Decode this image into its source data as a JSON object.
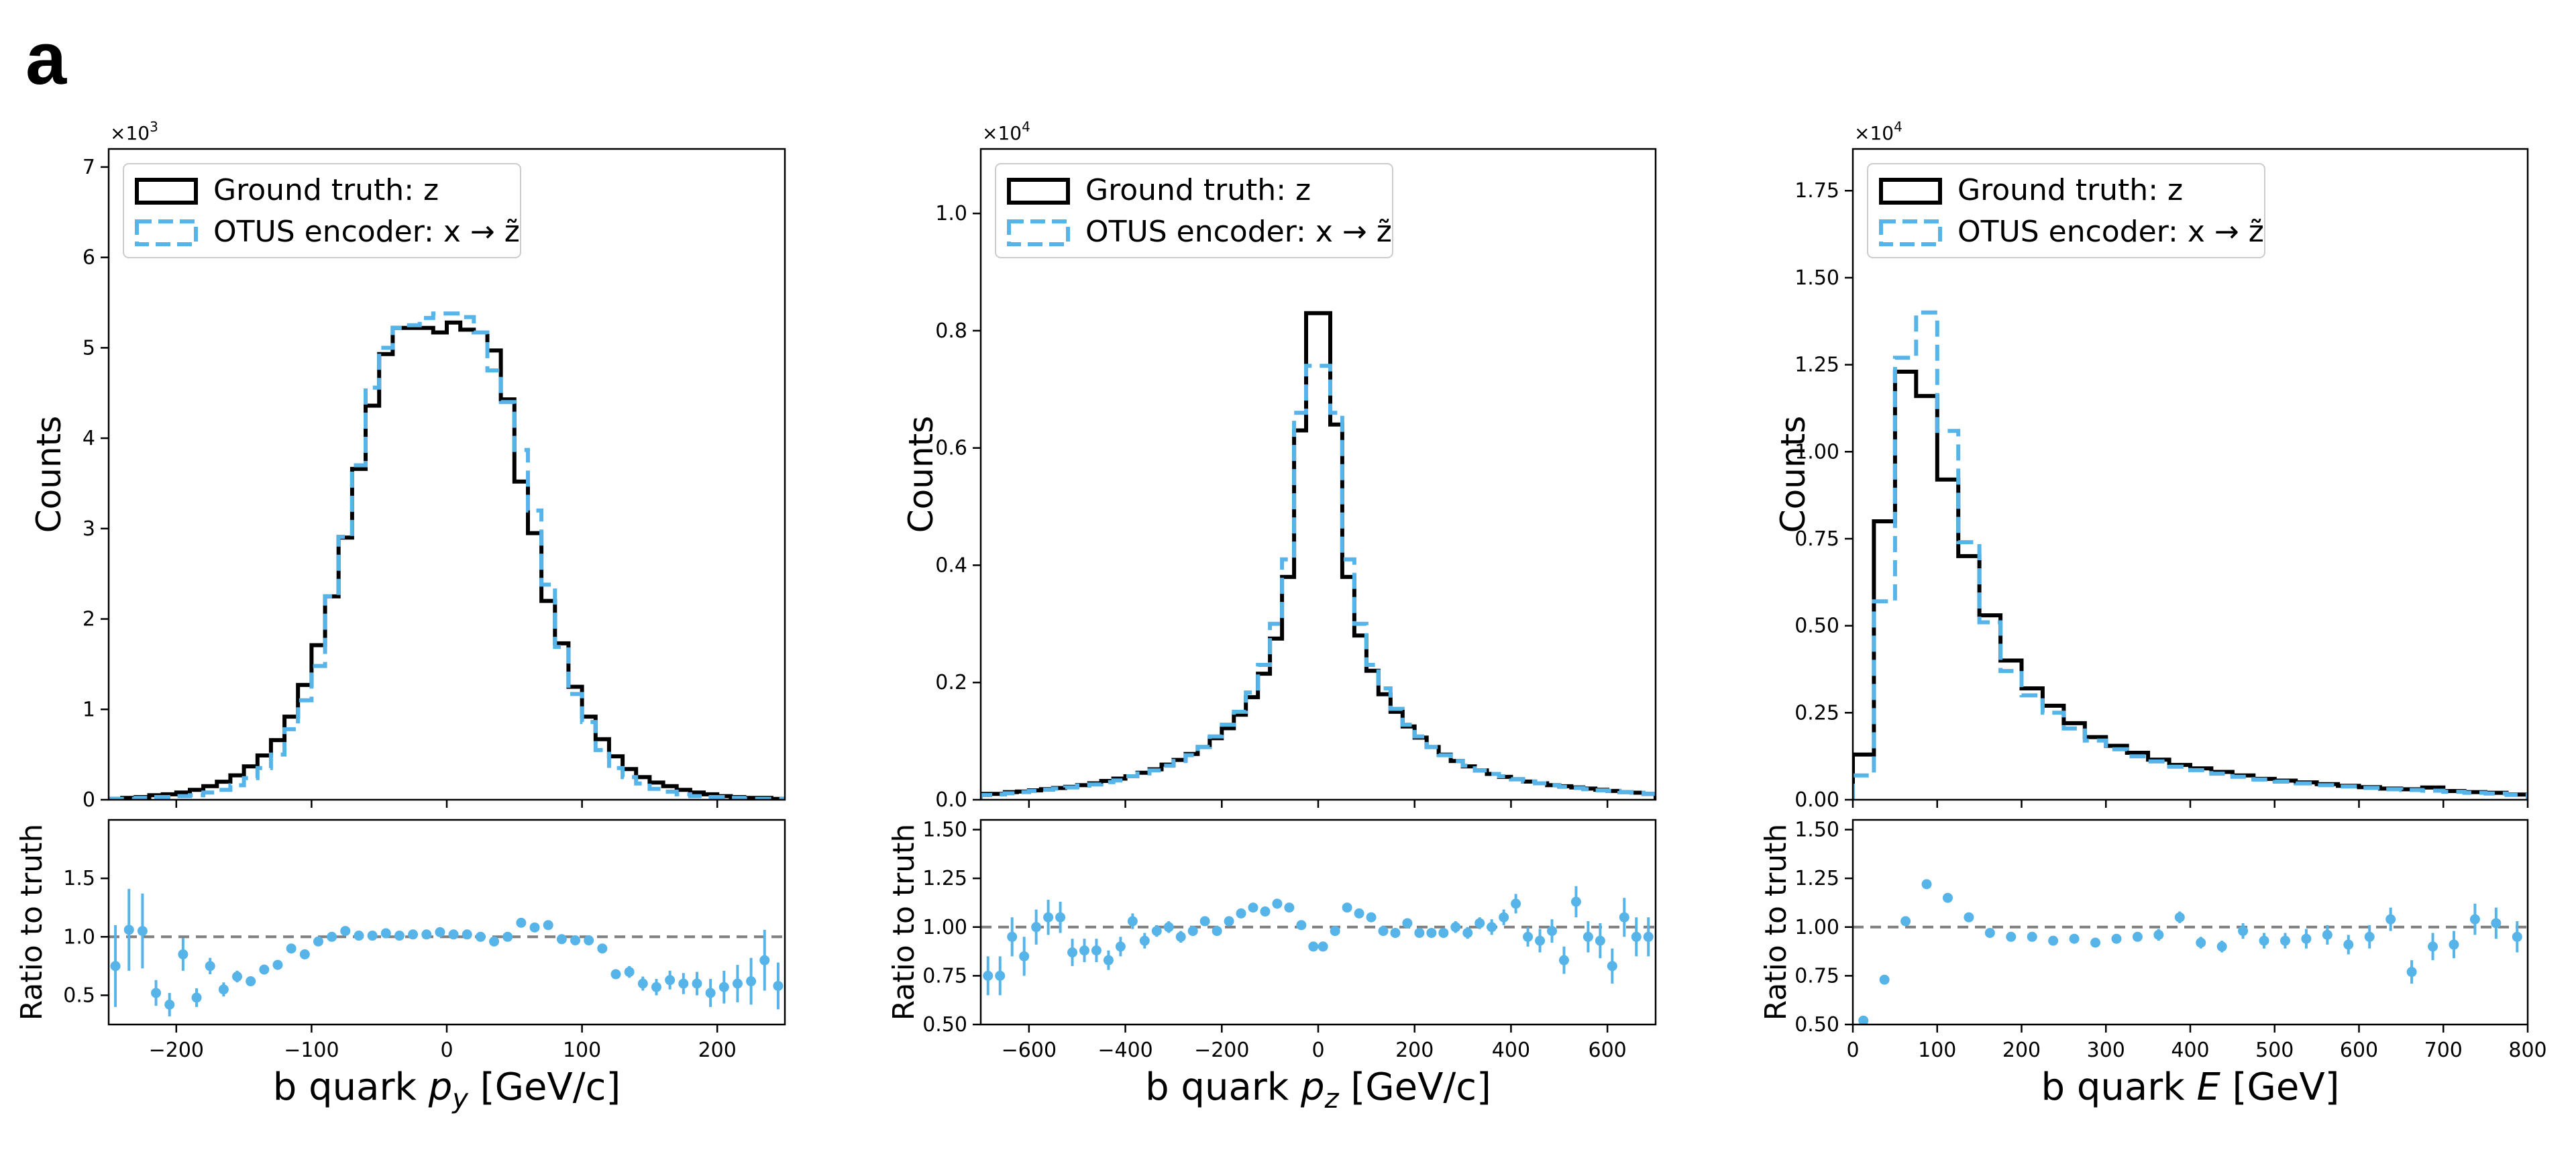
{
  "panel_label": "a",
  "colors": {
    "truth": "#000000",
    "model": "#56b4e9",
    "reference": "#7f7f7f",
    "axes": "#000000"
  },
  "legend": {
    "truth_label": "Ground truth: z",
    "model_label": "OTUS encoder: x → z̃"
  },
  "chart_data": [
    {
      "type": "histogram",
      "title": "",
      "xlabel": "b quark p_y [GeV/c]",
      "xlabel_plain": "b quark",
      "xlabel_var": "p",
      "xlabel_sub": "y",
      "xlabel_unit": "[GeV/c]",
      "ylabel": "Counts",
      "ylabel_ratio": "Ratio to truth",
      "offset_label": "×10³",
      "offset_mant": "×10",
      "offset_exp": "3",
      "legend_position": "top-left",
      "xlim": [
        -250,
        250
      ],
      "ylim": [
        0,
        7.2
      ],
      "yticks": [
        0,
        1,
        2,
        3,
        4,
        5,
        6,
        7
      ],
      "yticklabels": [
        "0",
        "1",
        "2",
        "3",
        "4",
        "5",
        "6",
        "7"
      ],
      "xticks": [
        -200,
        -100,
        0,
        100,
        200
      ],
      "xticklabels": [
        "−200",
        "−100",
        "0",
        "100",
        "200"
      ],
      "ratio_ylim": [
        0.25,
        2.0
      ],
      "ratio_yticks": [
        0.5,
        1.0,
        1.5
      ],
      "ratio_yticklabels": [
        "0.5",
        "1.0",
        "1.5"
      ],
      "bin_edges": [
        -250,
        -240,
        -230,
        -220,
        -210,
        -200,
        -190,
        -180,
        -170,
        -160,
        -150,
        -140,
        -130,
        -120,
        -110,
        -100,
        -90,
        -80,
        -70,
        -60,
        -50,
        -40,
        -30,
        -20,
        -10,
        0,
        10,
        20,
        30,
        40,
        50,
        60,
        70,
        80,
        90,
        100,
        110,
        120,
        130,
        140,
        150,
        160,
        170,
        180,
        190,
        200,
        210,
        220,
        230,
        240,
        250
      ],
      "series": [
        {
          "name": "Ground truth: z",
          "values": [
            0.01,
            0.02,
            0.03,
            0.05,
            0.06,
            0.08,
            0.11,
            0.15,
            0.2,
            0.27,
            0.37,
            0.49,
            0.66,
            0.92,
            1.27,
            1.71,
            2.25,
            2.9,
            3.66,
            4.36,
            4.93,
            5.22,
            5.22,
            5.22,
            5.17,
            5.28,
            5.2,
            5.17,
            4.97,
            4.43,
            3.52,
            2.95,
            2.2,
            1.73,
            1.25,
            0.92,
            0.67,
            0.48,
            0.34,
            0.25,
            0.19,
            0.15,
            0.11,
            0.08,
            0.06,
            0.04,
            0.03,
            0.02,
            0.02,
            0.01
          ]
        },
        {
          "name": "OTUS encoder: x → z̃",
          "values": [
            0.01,
            0.01,
            0.02,
            0.03,
            0.03,
            0.04,
            0.05,
            0.08,
            0.11,
            0.16,
            0.24,
            0.35,
            0.5,
            0.78,
            1.1,
            1.48,
            2.25,
            2.91,
            3.7,
            4.56,
            5.0,
            5.22,
            5.25,
            5.33,
            5.38,
            5.38,
            5.34,
            5.17,
            4.75,
            4.4,
            3.87,
            3.2,
            2.38,
            1.69,
            1.17,
            0.86,
            0.55,
            0.35,
            0.25,
            0.18,
            0.12,
            0.09,
            0.06,
            0.04,
            0.03,
            0.03,
            0.02,
            0.01,
            0.01,
            0.01
          ]
        }
      ],
      "ratio": {
        "x": [
          -245,
          -235,
          -225,
          -215,
          -205,
          -195,
          -185,
          -175,
          -165,
          -155,
          -145,
          -135,
          -125,
          -115,
          -105,
          -95,
          -85,
          -75,
          -65,
          -55,
          -45,
          -35,
          -25,
          -15,
          -5,
          5,
          15,
          25,
          35,
          45,
          55,
          65,
          75,
          85,
          95,
          105,
          115,
          125,
          135,
          145,
          155,
          165,
          175,
          185,
          195,
          205,
          215,
          225,
          235,
          245
        ],
        "values": [
          0.75,
          1.06,
          1.05,
          0.52,
          0.42,
          0.85,
          0.48,
          0.75,
          0.55,
          0.66,
          0.62,
          0.72,
          0.76,
          0.9,
          0.85,
          0.96,
          1.0,
          1.05,
          1.01,
          1.01,
          1.03,
          1.01,
          1.02,
          1.02,
          1.04,
          1.02,
          1.02,
          1.0,
          0.96,
          1.0,
          1.12,
          1.08,
          1.1,
          0.98,
          0.97,
          0.97,
          0.9,
          0.68,
          0.7,
          0.6,
          0.57,
          0.63,
          0.6,
          0.6,
          0.52,
          0.57,
          0.6,
          0.62,
          0.8,
          0.58
        ],
        "errors": [
          0.35,
          0.35,
          0.32,
          0.11,
          0.1,
          0.14,
          0.08,
          0.07,
          0.06,
          0.05,
          0.04,
          0.03,
          0.03,
          0.02,
          0.02,
          0.02,
          0.02,
          0.02,
          0.02,
          0.01,
          0.01,
          0.01,
          0.01,
          0.01,
          0.01,
          0.01,
          0.01,
          0.01,
          0.01,
          0.01,
          0.02,
          0.02,
          0.02,
          0.02,
          0.02,
          0.03,
          0.03,
          0.04,
          0.05,
          0.06,
          0.07,
          0.08,
          0.09,
          0.1,
          0.12,
          0.14,
          0.16,
          0.2,
          0.26,
          0.2
        ]
      }
    },
    {
      "type": "histogram",
      "title": "",
      "xlabel": "b quark p_z [GeV/c]",
      "xlabel_plain": "b quark",
      "xlabel_var": "p",
      "xlabel_sub": "z",
      "xlabel_unit": "[GeV/c]",
      "ylabel": "Counts",
      "ylabel_ratio": "Ratio to truth",
      "offset_label": "×10⁴",
      "offset_mant": "×10",
      "offset_exp": "4",
      "legend_position": "top-left",
      "xlim": [
        -700,
        700
      ],
      "ylim": [
        0,
        1.11
      ],
      "yticks": [
        0,
        0.2,
        0.4,
        0.6,
        0.8,
        1.0
      ],
      "yticklabels": [
        "0.0",
        "0.2",
        "0.4",
        "0.6",
        "0.8",
        "1.0"
      ],
      "xticks": [
        -600,
        -400,
        -200,
        0,
        200,
        400,
        600
      ],
      "xticklabels": [
        "−600",
        "−400",
        "−200",
        "0",
        "200",
        "400",
        "600"
      ],
      "ratio_ylim": [
        0.5,
        1.55
      ],
      "ratio_yticks": [
        0.5,
        0.75,
        1.0,
        1.25,
        1.5
      ],
      "ratio_yticklabels": [
        "0.50",
        "0.75",
        "1.00",
        "1.25",
        "1.50"
      ],
      "bin_edges": [
        -700,
        -675,
        -650,
        -625,
        -600,
        -575,
        -550,
        -525,
        -500,
        -475,
        -450,
        -425,
        -400,
        -375,
        -350,
        -325,
        -300,
        -275,
        -250,
        -225,
        -200,
        -175,
        -150,
        -125,
        -100,
        -75,
        -50,
        -25,
        0,
        25,
        50,
        75,
        100,
        125,
        150,
        175,
        200,
        225,
        250,
        275,
        300,
        325,
        350,
        375,
        400,
        425,
        450,
        475,
        500,
        525,
        550,
        575,
        600,
        625,
        650,
        675,
        700
      ],
      "series": [
        {
          "name": "Ground truth: z",
          "values": [
            0.01,
            0.01,
            0.013,
            0.014,
            0.016,
            0.018,
            0.02,
            0.022,
            0.025,
            0.028,
            0.032,
            0.036,
            0.04,
            0.046,
            0.052,
            0.06,
            0.068,
            0.078,
            0.09,
            0.105,
            0.122,
            0.145,
            0.175,
            0.215,
            0.275,
            0.38,
            0.63,
            0.83,
            0.83,
            0.64,
            0.38,
            0.28,
            0.22,
            0.18,
            0.15,
            0.125,
            0.106,
            0.09,
            0.077,
            0.066,
            0.057,
            0.05,
            0.044,
            0.039,
            0.035,
            0.031,
            0.028,
            0.025,
            0.023,
            0.021,
            0.019,
            0.017,
            0.015,
            0.013,
            0.012,
            0.01
          ]
        },
        {
          "name": "OTUS encoder: x → z̃",
          "values": [
            0.008,
            0.009,
            0.011,
            0.013,
            0.015,
            0.017,
            0.019,
            0.021,
            0.024,
            0.026,
            0.03,
            0.033,
            0.04,
            0.045,
            0.05,
            0.058,
            0.066,
            0.076,
            0.09,
            0.108,
            0.128,
            0.15,
            0.183,
            0.23,
            0.3,
            0.41,
            0.66,
            0.74,
            0.74,
            0.66,
            0.41,
            0.3,
            0.23,
            0.19,
            0.155,
            0.128,
            0.108,
            0.09,
            0.076,
            0.066,
            0.058,
            0.05,
            0.044,
            0.04,
            0.035,
            0.031,
            0.028,
            0.025,
            0.022,
            0.02,
            0.018,
            0.016,
            0.015,
            0.013,
            0.012,
            0.01
          ]
        }
      ],
      "ratio": {
        "x": [
          -685,
          -660,
          -635,
          -610,
          -585,
          -560,
          -535,
          -510,
          -485,
          -460,
          -435,
          -410,
          -385,
          -360,
          -335,
          -310,
          -285,
          -260,
          -235,
          -210,
          -185,
          -160,
          -135,
          -110,
          -85,
          -60,
          -35,
          -10,
          10,
          35,
          60,
          85,
          110,
          135,
          160,
          185,
          210,
          235,
          260,
          285,
          310,
          335,
          360,
          385,
          410,
          435,
          460,
          485,
          510,
          535,
          560,
          585,
          610,
          635,
          660,
          685
        ],
        "values": [
          0.75,
          0.75,
          0.95,
          0.85,
          1.0,
          1.05,
          1.05,
          0.87,
          0.88,
          0.88,
          0.83,
          0.9,
          1.03,
          0.93,
          0.98,
          1.0,
          0.95,
          0.98,
          1.03,
          0.98,
          1.03,
          1.07,
          1.1,
          1.08,
          1.12,
          1.1,
          1.01,
          0.9,
          0.9,
          0.98,
          1.1,
          1.07,
          1.05,
          0.98,
          0.97,
          1.02,
          0.97,
          0.97,
          0.97,
          1.0,
          0.97,
          1.02,
          1.0,
          1.05,
          1.12,
          0.95,
          0.93,
          0.98,
          0.83,
          1.13,
          0.95,
          0.93,
          0.8,
          1.05,
          0.95,
          0.95
        ],
        "errors": [
          0.1,
          0.1,
          0.1,
          0.1,
          0.09,
          0.09,
          0.08,
          0.07,
          0.06,
          0.06,
          0.05,
          0.05,
          0.04,
          0.04,
          0.03,
          0.03,
          0.03,
          0.02,
          0.02,
          0.02,
          0.02,
          0.01,
          0.01,
          0.01,
          0.01,
          0.01,
          0.01,
          0.01,
          0.01,
          0.01,
          0.01,
          0.01,
          0.01,
          0.01,
          0.01,
          0.02,
          0.02,
          0.02,
          0.02,
          0.03,
          0.03,
          0.03,
          0.04,
          0.04,
          0.05,
          0.05,
          0.06,
          0.06,
          0.07,
          0.08,
          0.08,
          0.09,
          0.09,
          0.1,
          0.1,
          0.1
        ]
      }
    },
    {
      "type": "histogram",
      "title": "",
      "xlabel": "b quark E [GeV]",
      "xlabel_plain": "b quark",
      "xlabel_var": "E",
      "xlabel_sub": "",
      "xlabel_unit": "[GeV]",
      "ylabel": "Counts",
      "ylabel_ratio": "Ratio to truth",
      "offset_label": "×10⁴",
      "offset_mant": "×10",
      "offset_exp": "4",
      "legend_position": "top-left",
      "xlim": [
        0,
        800
      ],
      "ylim": [
        0,
        1.87
      ],
      "yticks": [
        0,
        0.25,
        0.5,
        0.75,
        1.0,
        1.25,
        1.5,
        1.75
      ],
      "yticklabels": [
        "0.00",
        "0.25",
        "0.50",
        "0.75",
        "1.00",
        "1.25",
        "1.50",
        "1.75"
      ],
      "xticks": [
        0,
        100,
        200,
        300,
        400,
        500,
        600,
        700,
        800
      ],
      "xticklabels": [
        "0",
        "100",
        "200",
        "300",
        "400",
        "500",
        "600",
        "700",
        "800"
      ],
      "ratio_ylim": [
        0.5,
        1.55
      ],
      "ratio_yticks": [
        0.5,
        0.75,
        1.0,
        1.25,
        1.5
      ],
      "ratio_yticklabels": [
        "0.50",
        "0.75",
        "1.00",
        "1.25",
        "1.50"
      ],
      "bin_edges": [
        0,
        25,
        50,
        75,
        100,
        125,
        150,
        175,
        200,
        225,
        250,
        275,
        300,
        325,
        350,
        375,
        400,
        425,
        450,
        475,
        500,
        525,
        550,
        575,
        600,
        625,
        650,
        675,
        700,
        725,
        750,
        775,
        800
      ],
      "series": [
        {
          "name": "Ground truth: z",
          "values": [
            0.13,
            0.8,
            1.23,
            1.16,
            0.92,
            0.7,
            0.53,
            0.4,
            0.32,
            0.27,
            0.22,
            0.18,
            0.155,
            0.135,
            0.115,
            0.1,
            0.09,
            0.08,
            0.07,
            0.06,
            0.055,
            0.05,
            0.045,
            0.04,
            0.036,
            0.032,
            0.03,
            0.035,
            0.025,
            0.022,
            0.02,
            0.015
          ]
        },
        {
          "name": "OTUS encoder: x → z̃",
          "values": [
            0.07,
            0.57,
            1.27,
            1.4,
            1.06,
            0.74,
            0.51,
            0.37,
            0.3,
            0.25,
            0.205,
            0.17,
            0.145,
            0.125,
            0.11,
            0.095,
            0.085,
            0.075,
            0.066,
            0.058,
            0.052,
            0.047,
            0.042,
            0.038,
            0.034,
            0.03,
            0.028,
            0.026,
            0.023,
            0.02,
            0.018,
            0.014
          ]
        }
      ],
      "ratio": {
        "x": [
          12.5,
          37.5,
          62.5,
          87.5,
          112.5,
          137.5,
          162.5,
          187.5,
          212.5,
          237.5,
          262.5,
          287.5,
          312.5,
          337.5,
          362.5,
          387.5,
          412.5,
          437.5,
          462.5,
          487.5,
          512.5,
          537.5,
          562.5,
          587.5,
          612.5,
          637.5,
          662.5,
          687.5,
          712.5,
          737.5,
          762.5,
          787.5
        ],
        "values": [
          0.52,
          0.73,
          1.03,
          1.22,
          1.15,
          1.05,
          0.97,
          0.95,
          0.95,
          0.93,
          0.94,
          0.92,
          0.94,
          0.95,
          0.96,
          1.05,
          0.92,
          0.9,
          0.98,
          0.93,
          0.93,
          0.94,
          0.96,
          0.91,
          0.95,
          1.04,
          0.77,
          0.9,
          0.91,
          1.04,
          1.02,
          0.95
        ],
        "errors": [
          0.01,
          0.01,
          0.01,
          0.01,
          0.01,
          0.01,
          0.01,
          0.01,
          0.01,
          0.01,
          0.02,
          0.02,
          0.02,
          0.02,
          0.03,
          0.03,
          0.03,
          0.03,
          0.04,
          0.04,
          0.04,
          0.05,
          0.05,
          0.05,
          0.06,
          0.06,
          0.06,
          0.07,
          0.07,
          0.08,
          0.08,
          0.08
        ]
      }
    }
  ]
}
